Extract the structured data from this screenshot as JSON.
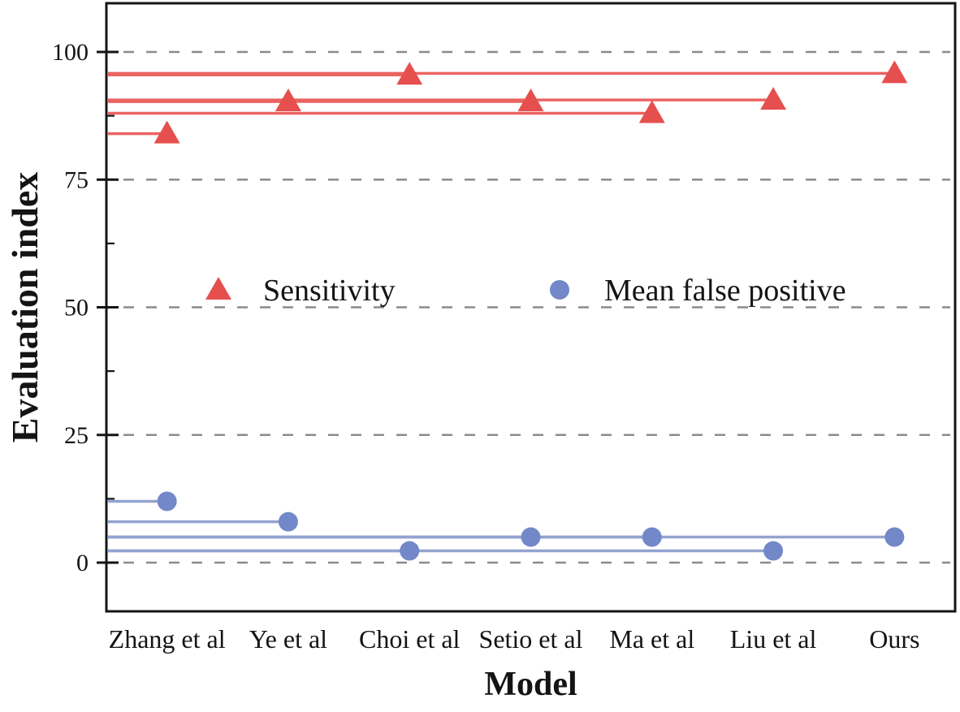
{
  "figure": {
    "background": "#ffffff"
  },
  "chart_data": {
    "type": "scatter",
    "variant": "horizontal-stem-lollipop",
    "title": "",
    "xlabel": "Model",
    "ylabel": "Evaluation index",
    "categories": [
      "Zhang et al",
      "Ye et al",
      "Choi et al",
      "Setio et al",
      "Ma et al",
      "Liu et al",
      "Ours"
    ],
    "series": [
      {
        "name": "Sensitivity",
        "marker": "triangle",
        "marker_color": "#e5504e",
        "stem_color": "#ea6462",
        "values": [
          84,
          90.3,
          95.5,
          90.3,
          88,
          90.6,
          95.8
        ]
      },
      {
        "name": "Mean false positive",
        "marker": "circle",
        "marker_color": "#7388c8",
        "stem_color": "#93a3d0",
        "values": [
          12,
          8,
          2.3,
          5,
          5,
          2.3,
          5
        ]
      }
    ],
    "yticks": [
      0,
      25,
      50,
      75,
      100
    ],
    "yminorticks": [
      12.5,
      37.5,
      62.5,
      87.5
    ],
    "ylim": [
      -9.5,
      109.5
    ],
    "grid": "horizontal-dashed",
    "grid_color": "#8b8b8b",
    "axis_color": "#141414",
    "legend_position": "inside-center",
    "legend": [
      "Sensitivity",
      "Mean false positive"
    ]
  }
}
